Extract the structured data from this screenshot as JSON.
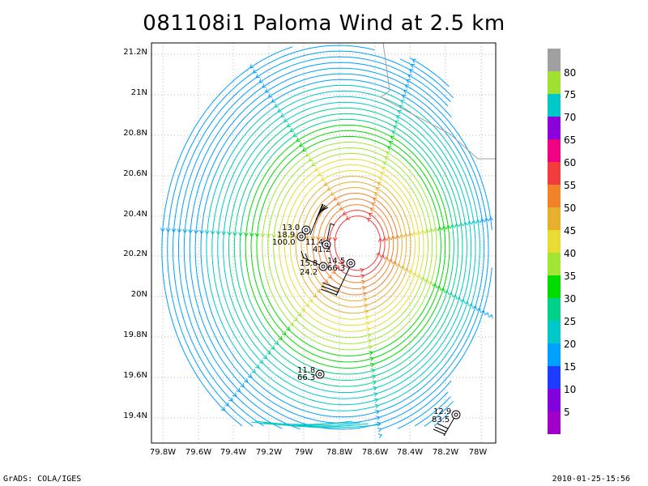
{
  "title": "081108i1 Paloma Wind at 2.5 km",
  "footer": {
    "left": "GrADS: COLA/IGES",
    "right": "2010-01-25-15:56"
  },
  "axes": {
    "x_ticks": [
      "79.8W",
      "79.6W",
      "79.4W",
      "79.2W",
      "79W",
      "78.8W",
      "78.6W",
      "78.4W",
      "78.2W",
      "78W"
    ],
    "y_ticks": [
      "21.2N",
      "21N",
      "20.8N",
      "20.6N",
      "20.4N",
      "20.2N",
      "20N",
      "19.8N",
      "19.6N",
      "19.4N"
    ]
  },
  "colorbar": {
    "labels": [
      "80",
      "75",
      "70",
      "65",
      "60",
      "55",
      "50",
      "45",
      "40",
      "35",
      "30",
      "25",
      "20",
      "15",
      "10",
      "5"
    ],
    "colors": [
      "#a0a0a0",
      "#a0e032",
      "#00c8c8",
      "#8c00dc",
      "#f00082",
      "#f03c3c",
      "#f08228",
      "#e6af2d",
      "#e6dc32",
      "#a0e632",
      "#00dc00",
      "#00d28c",
      "#00c8c8",
      "#00a0ff",
      "#1e3cff",
      "#8200dc",
      "#a000c8"
    ]
  },
  "storm_center": {
    "lon": -78.68,
    "lat": 20.27
  },
  "observations": [
    {
      "line1": "13.0",
      "line2": "18.9",
      "line3": "100.0"
    },
    {
      "line1": "11.4",
      "line2": "41.2"
    },
    {
      "line1": "14.5",
      "line2": "66.3"
    },
    {
      "line1": "15.8",
      "line2": "24.2"
    },
    {
      "line1": "11.8",
      "line2": "66.3"
    },
    {
      "line1": "12.9",
      "line2": "83.5"
    }
  ]
}
